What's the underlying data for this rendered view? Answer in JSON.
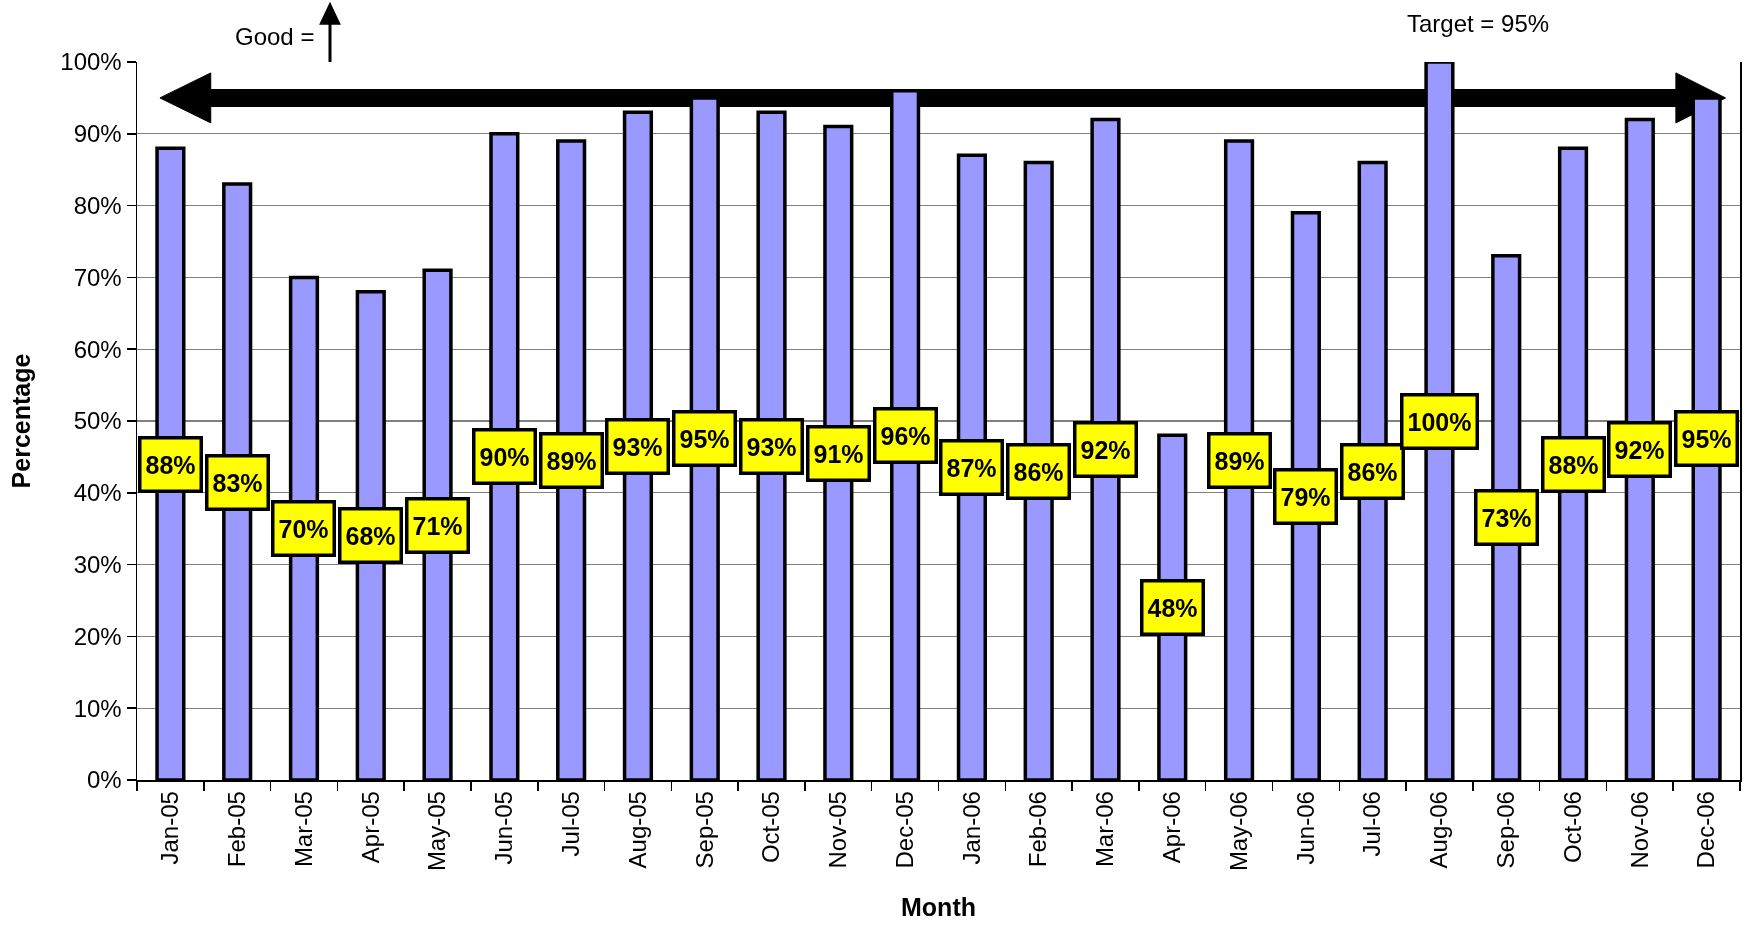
{
  "chart_data": {
    "type": "bar",
    "xlabel": "Month",
    "ylabel": "Percentage",
    "categories": [
      "Jan-05",
      "Feb-05",
      "Mar-05",
      "Apr-05",
      "May-05",
      "Jun-05",
      "Jul-05",
      "Aug-05",
      "Sep-05",
      "Oct-05",
      "Nov-05",
      "Dec-05",
      "Jan-06",
      "Feb-06",
      "Mar-06",
      "Apr-06",
      "May-06",
      "Jun-06",
      "Jul-06",
      "Aug-06",
      "Sep-06",
      "Oct-06",
      "Nov-06",
      "Dec-06"
    ],
    "values": [
      88,
      83,
      70,
      68,
      71,
      90,
      89,
      93,
      95,
      93,
      91,
      96,
      87,
      86,
      92,
      48,
      89,
      79,
      86,
      100,
      73,
      88,
      92,
      95
    ],
    "value_labels": [
      "88%",
      "83%",
      "70%",
      "68%",
      "71%",
      "90%",
      "89%",
      "93%",
      "95%",
      "93%",
      "91%",
      "96%",
      "87%",
      "86%",
      "92%",
      "48%",
      "89%",
      "79%",
      "86%",
      "100%",
      "73%",
      "88%",
      "92%",
      "95%"
    ],
    "color": "#9999ff",
    "ylim": [
      0,
      100
    ],
    "yticks": [
      {
        "value": 0,
        "label": "0%"
      },
      {
        "value": 10,
        "label": "10%"
      },
      {
        "value": 20,
        "label": "20%"
      },
      {
        "value": 30,
        "label": "30%"
      },
      {
        "value": 40,
        "label": "40%"
      },
      {
        "value": 50,
        "label": "50%"
      },
      {
        "value": 60,
        "label": "60%"
      },
      {
        "value": 70,
        "label": "70%"
      },
      {
        "value": 80,
        "label": "80%"
      },
      {
        "value": 90,
        "label": "90%"
      },
      {
        "value": 100,
        "label": "100%"
      }
    ],
    "grid": "y",
    "ref_lines": [
      {
        "axis": "y",
        "value": 95,
        "label": "Target = 95%",
        "color": "#000000"
      }
    ],
    "annotations": [
      "Good ="
    ]
  }
}
